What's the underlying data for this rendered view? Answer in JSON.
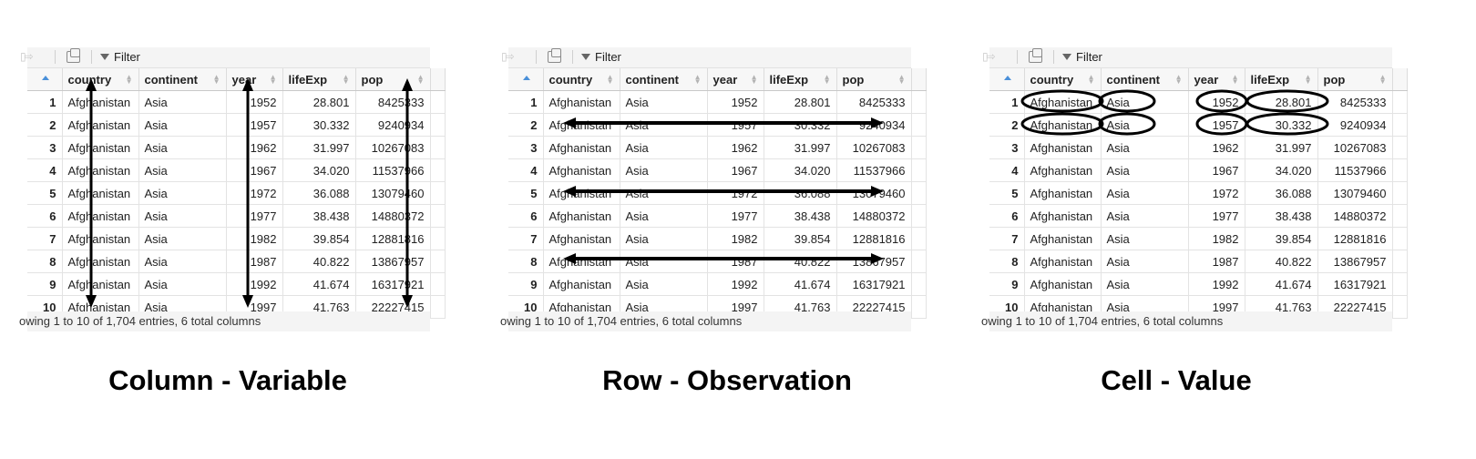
{
  "toolbar": {
    "filter_label": "Filter"
  },
  "columns": [
    "country",
    "continent",
    "year",
    "lifeExp",
    "pop"
  ],
  "rows": [
    [
      "1",
      "Afghanistan",
      "Asia",
      "1952",
      "28.801",
      "8425333"
    ],
    [
      "2",
      "Afghanistan",
      "Asia",
      "1957",
      "30.332",
      "9240934"
    ],
    [
      "3",
      "Afghanistan",
      "Asia",
      "1962",
      "31.997",
      "10267083"
    ],
    [
      "4",
      "Afghanistan",
      "Asia",
      "1967",
      "34.020",
      "11537966"
    ],
    [
      "5",
      "Afghanistan",
      "Asia",
      "1972",
      "36.088",
      "13079460"
    ],
    [
      "6",
      "Afghanistan",
      "Asia",
      "1977",
      "38.438",
      "14880372"
    ],
    [
      "7",
      "Afghanistan",
      "Asia",
      "1982",
      "39.854",
      "12881816"
    ],
    [
      "8",
      "Afghanistan",
      "Asia",
      "1987",
      "40.822",
      "13867957"
    ],
    [
      "9",
      "Afghanistan",
      "Asia",
      "1992",
      "41.674",
      "16317921"
    ],
    [
      "10",
      "Afghanistan",
      "Asia",
      "1997",
      "41.763",
      "22227415"
    ]
  ],
  "footer_text": "owing 1 to 10 of 1,704 entries, 6 total columns",
  "captions": {
    "column": "Column - Variable",
    "row": "Row - Observation",
    "cell": "Cell - Value"
  },
  "colors": {
    "sort_indicator": "#4a90d9",
    "annotation": "#000000"
  }
}
